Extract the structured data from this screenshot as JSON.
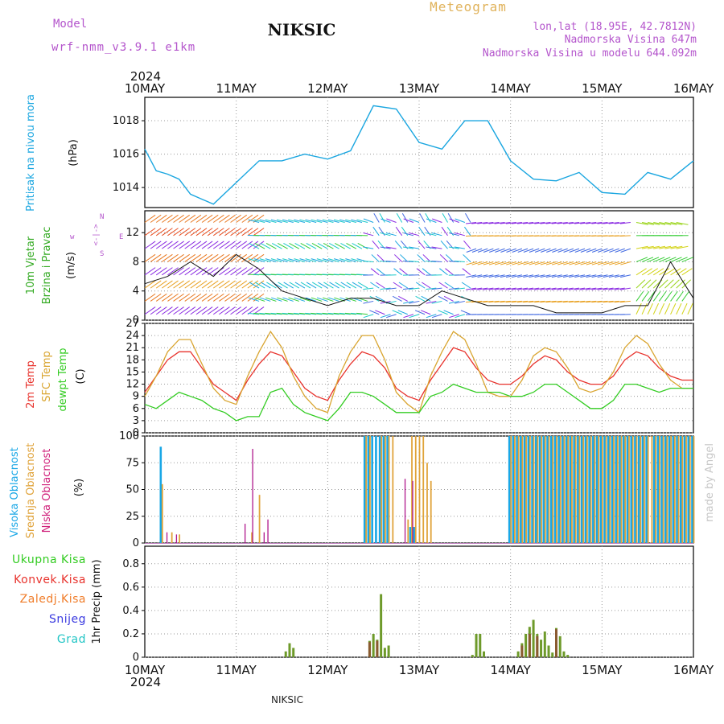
{
  "header": {
    "model_label": "Model",
    "model_name": "wrf-nmm_v3.9.1 e1km",
    "station": "NIKSIC",
    "meteogram": "Meteogram",
    "lonlat": "lon,lat (18.95E, 42.7812N)",
    "elevation": "Nadmorska Visina 647m",
    "elevation_model": "Nadmorska Visina u modelu 644.092m",
    "footer_station": "NIKSIC",
    "watermark": "made by Angel"
  },
  "x_axis": {
    "year": "2024",
    "ticks": [
      "10MAY",
      "11MAY",
      "12MAY",
      "13MAY",
      "14MAY",
      "15MAY",
      "16MAY"
    ]
  },
  "colors": {
    "pressure": "#1aa6e0",
    "temp2m": "#e8322c",
    "sfc": "#d9a530",
    "dewpt": "#33cc22",
    "high_cloud": "#19a7e6",
    "mid_cloud": "#e0a33a",
    "low_cloud": "#b0178c",
    "total_precip": "#6e9a2a",
    "conv_precip": "#e8322c",
    "frozen": "#f07d2a",
    "snow": "#3a3ae0",
    "hail": "#22c5c5"
  },
  "panels": {
    "pressure": {
      "labels": [
        "Pritisak na nivou mora",
        "(hPa)"
      ],
      "ticks": [
        "1014",
        "1016",
        "1018"
      ]
    },
    "wind": {
      "labels": [
        "10m Vjetar",
        "Brzina i Pravac",
        "(m/s)"
      ],
      "compass": [
        "w",
        "<-",
        "|",
        "->",
        "E",
        "S",
        "N"
      ],
      "ticks": [
        "0",
        "4",
        "8",
        "12"
      ]
    },
    "temperature": {
      "labels": [
        "2m Temp",
        "SFC Temp",
        "dewpt Temp",
        "(C)"
      ],
      "ticks": [
        "0",
        "3",
        "6",
        "9",
        "12",
        "15",
        "18",
        "21",
        "24",
        "27"
      ]
    },
    "cloud": {
      "labels": [
        "Visoka Oblacnost",
        "Srednja Oblacnost",
        "Niska Oblacnost",
        "(%)"
      ],
      "ticks": [
        "0",
        "25",
        "50",
        "75",
        "100"
      ]
    },
    "precip": {
      "labels": [
        "Ukupna Kisa",
        "Konvek.Kisa",
        "Zaledj.Kisa",
        "Snijeg",
        "Grad",
        "1hr Precip (mm)"
      ],
      "ticks": [
        "0",
        "0.2",
        "0.4",
        "0.6",
        "0.8"
      ]
    }
  },
  "chart_data": [
    {
      "type": "line",
      "ylabel": "(hPa)",
      "ylim": [
        1012.8,
        1019.4
      ],
      "series": [
        {
          "name": "Pritisak na nivou mora",
          "x": [
            0,
            3,
            6,
            9,
            12,
            15,
            18,
            24,
            30,
            36,
            42,
            48,
            54,
            60,
            66,
            72,
            78,
            84,
            90,
            96,
            102,
            108,
            114,
            120,
            126,
            132,
            138,
            144
          ],
          "values": [
            1016.3,
            1015.0,
            1014.8,
            1014.5,
            1013.6,
            1013.3,
            1013.0,
            1014.3,
            1015.6,
            1015.6,
            1016.0,
            1015.7,
            1016.2,
            1018.9,
            1018.7,
            1016.7,
            1016.3,
            1018.0,
            1018.0,
            1015.6,
            1014.5,
            1014.4,
            1014.9,
            1013.7,
            1013.6,
            1014.9,
            1014.5,
            1015.6
          ]
        }
      ]
    },
    {
      "type": "line",
      "ylabel": "(m/s)",
      "ylim": [
        0,
        15
      ],
      "series": [
        {
          "name": "10m Vjetar",
          "x": [
            0,
            6,
            12,
            18,
            24,
            30,
            36,
            42,
            48,
            54,
            60,
            66,
            72,
            78,
            84,
            90,
            96,
            102,
            108,
            114,
            120,
            126,
            132,
            138,
            144
          ],
          "values": [
            5,
            6,
            8,
            6,
            9,
            7,
            4,
            3,
            2,
            3,
            3,
            2,
            2,
            4,
            3,
            2,
            2,
            2,
            1,
            1,
            1,
            2,
            2,
            8,
            3
          ]
        }
      ]
    },
    {
      "type": "line",
      "ylabel": "(C)",
      "ylim": [
        0,
        27
      ],
      "x": [
        0,
        3,
        6,
        9,
        12,
        15,
        18,
        21,
        24,
        27,
        30,
        33,
        36,
        39,
        42,
        45,
        48,
        51,
        54,
        57,
        60,
        63,
        66,
        69,
        72,
        75,
        78,
        81,
        84,
        87,
        90,
        93,
        96,
        99,
        102,
        105,
        108,
        111,
        114,
        117,
        120,
        123,
        126,
        129,
        132,
        135,
        138,
        141,
        144
      ],
      "series": [
        {
          "name": "2m Temp",
          "values": [
            10,
            14,
            18,
            20,
            20,
            16,
            12,
            10,
            8,
            13,
            17,
            20,
            19,
            15,
            11,
            9,
            8,
            13,
            17,
            20,
            19,
            16,
            11,
            9,
            8,
            13,
            17,
            21,
            20,
            16,
            13,
            12,
            12,
            14,
            17,
            19,
            18,
            15,
            13,
            12,
            12,
            14,
            18,
            20,
            19,
            16,
            14,
            13,
            13
          ]
        },
        {
          "name": "SFC Temp",
          "values": [
            9,
            14,
            20,
            23,
            23,
            17,
            11,
            8,
            7,
            14,
            20,
            25,
            21,
            14,
            9,
            6,
            5,
            14,
            20,
            24,
            24,
            18,
            10,
            7,
            5,
            14,
            20,
            25,
            23,
            17,
            10,
            9,
            9,
            13,
            19,
            21,
            20,
            16,
            11,
            10,
            11,
            15,
            21,
            24,
            22,
            17,
            13,
            11,
            11
          ]
        },
        {
          "name": "dewpt Temp",
          "values": [
            7,
            6,
            8,
            10,
            9,
            8,
            6,
            5,
            3,
            4,
            4,
            10,
            11,
            7,
            5,
            4,
            3,
            6,
            10,
            10,
            9,
            7,
            5,
            5,
            5,
            9,
            10,
            12,
            11,
            10,
            10,
            10,
            9,
            9,
            10,
            12,
            12,
            10,
            8,
            6,
            6,
            8,
            12,
            12,
            11,
            10,
            11,
            11,
            11
          ]
        }
      ]
    },
    {
      "type": "bar",
      "ylabel": "(%)",
      "ylim": [
        0,
        100
      ],
      "x": [
        4.5,
        5,
        5.5,
        7,
        8,
        9,
        15,
        26,
        28,
        30,
        31,
        32,
        33,
        34,
        58,
        59,
        60,
        61,
        62,
        63,
        64,
        65,
        66,
        67,
        68,
        69,
        70,
        71,
        72,
        73,
        74,
        75,
        76,
        77,
        78,
        79,
        80,
        81,
        82,
        84,
        86,
        88,
        90,
        92,
        94,
        96,
        97,
        98,
        99,
        100,
        101,
        102,
        103,
        104,
        105,
        106,
        107,
        108,
        109,
        110,
        111,
        112,
        113,
        114,
        115,
        116,
        117,
        118,
        119,
        120,
        121,
        122,
        123,
        124,
        125,
        126,
        127,
        128,
        129,
        130,
        131,
        132,
        133,
        134,
        135,
        136,
        137,
        138,
        139,
        140,
        141,
        142,
        143,
        144
      ],
      "series": [
        {
          "name": "Visoka Oblacnost",
          "values": [
            90,
            0,
            0,
            0,
            0,
            0,
            0,
            0,
            0,
            0,
            0,
            0,
            0,
            0,
            100,
            100,
            100,
            100,
            100,
            100,
            100,
            0,
            0,
            0,
            0,
            0,
            15,
            15,
            0,
            0,
            0,
            0,
            0,
            0,
            0,
            0,
            0,
            0,
            0,
            0,
            0,
            0,
            0,
            0,
            0,
            100,
            100,
            100,
            100,
            100,
            100,
            100,
            100,
            100,
            100,
            100,
            100,
            100,
            100,
            100,
            100,
            100,
            100,
            100,
            100,
            100,
            100,
            100,
            100,
            100,
            100,
            100,
            100,
            100,
            100,
            100,
            100,
            100,
            100,
            100,
            100,
            100,
            0,
            100,
            100,
            100,
            100,
            100,
            100,
            100,
            100,
            100,
            100,
            100
          ]
        },
        {
          "name": "Srednja Oblacnost",
          "values": [
            55,
            0,
            0,
            10,
            0,
            8,
            0,
            0,
            10,
            45,
            0,
            0,
            0,
            0,
            100,
            100,
            0,
            0,
            100,
            100,
            100,
            100,
            0,
            0,
            0,
            22,
            100,
            100,
            100,
            100,
            75,
            58,
            0,
            0,
            0,
            0,
            0,
            0,
            0,
            0,
            0,
            0,
            0,
            0,
            0,
            100,
            100,
            100,
            100,
            100,
            100,
            100,
            100,
            100,
            100,
            100,
            100,
            100,
            100,
            100,
            100,
            100,
            100,
            100,
            100,
            100,
            100,
            100,
            100,
            100,
            100,
            100,
            100,
            100,
            100,
            100,
            100,
            100,
            100,
            100,
            100,
            100,
            100,
            100,
            100,
            100,
            100,
            100,
            100,
            100,
            100,
            100,
            100,
            100
          ]
        },
        {
          "name": "Niska Oblacnost",
          "values": [
            0,
            0,
            10,
            0,
            8,
            0,
            0,
            18,
            88,
            0,
            10,
            22,
            0,
            0,
            0,
            0,
            0,
            0,
            0,
            0,
            0,
            0,
            0,
            0,
            60,
            0,
            58,
            0,
            0,
            0,
            0,
            0,
            0,
            0,
            0,
            0,
            0,
            0,
            0,
            0,
            0,
            0,
            0,
            0,
            0,
            0,
            0,
            0,
            0,
            0,
            0,
            0,
            0,
            0,
            0,
            0,
            0,
            0,
            0,
            0,
            0,
            0,
            0,
            0,
            0,
            0,
            0,
            0,
            0,
            0,
            0,
            0,
            0,
            0,
            0,
            0,
            0,
            0,
            0,
            0,
            0,
            0,
            0,
            0,
            0,
            0,
            0,
            0,
            0,
            0,
            0,
            0,
            0,
            0
          ]
        }
      ]
    },
    {
      "type": "bar",
      "ylabel": "1hr Precip (mm)",
      "ylim": [
        0,
        0.95
      ],
      "x": [
        37,
        38,
        39,
        59,
        60,
        61,
        62,
        63,
        64,
        65,
        86,
        87,
        88,
        89,
        98,
        99,
        100,
        101,
        102,
        103,
        104,
        105,
        106,
        107,
        108,
        109,
        110,
        111
      ],
      "series": [
        {
          "name": "Ukupna Kisa",
          "values": [
            0.05,
            0.12,
            0.08,
            0.14,
            0.2,
            0.15,
            0.54,
            0.08,
            0.1,
            0,
            0.02,
            0.2,
            0.2,
            0.05,
            0.05,
            0.12,
            0.2,
            0.26,
            0.32,
            0.2,
            0.15,
            0.22,
            0.1,
            0.04,
            0.25,
            0.18,
            0.05,
            0.02
          ]
        },
        {
          "name": "Konvek.Kisa",
          "values": [
            0,
            0,
            0,
            0.13,
            0,
            0.14,
            0,
            0,
            0,
            0,
            0,
            0,
            0,
            0,
            0,
            0.1,
            0,
            0.2,
            0,
            0.18,
            0,
            0,
            0,
            0,
            0.24,
            0,
            0,
            0
          ]
        },
        {
          "name": "Zaledj.Kisa",
          "values": [
            0,
            0,
            0,
            0,
            0,
            0,
            0,
            0,
            0,
            0,
            0,
            0,
            0,
            0,
            0,
            0,
            0,
            0,
            0,
            0,
            0,
            0,
            0,
            0,
            0,
            0,
            0,
            0
          ]
        },
        {
          "name": "Snijeg",
          "values": [
            0,
            0,
            0,
            0,
            0,
            0,
            0,
            0,
            0,
            0,
            0,
            0,
            0,
            0,
            0,
            0,
            0,
            0,
            0,
            0,
            0,
            0,
            0,
            0,
            0,
            0,
            0,
            0
          ]
        },
        {
          "name": "Grad",
          "values": [
            0,
            0,
            0,
            0,
            0,
            0,
            0,
            0,
            0,
            0,
            0,
            0,
            0,
            0,
            0,
            0,
            0,
            0,
            0,
            0,
            0,
            0,
            0,
            0,
            0,
            0,
            0,
            0
          ]
        }
      ]
    }
  ]
}
